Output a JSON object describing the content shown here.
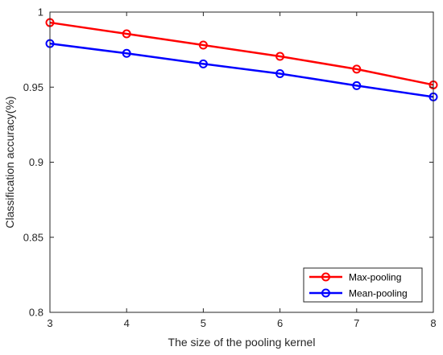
{
  "chart_data": {
    "type": "line",
    "title": "",
    "xlabel": "The size of the pooling kernel",
    "ylabel": "Classification accuracy(%)",
    "x": [
      3,
      4,
      5,
      6,
      7,
      8
    ],
    "xlim": [
      3,
      8
    ],
    "ylim": [
      0.8,
      1.0
    ],
    "xticks": [
      "3",
      "4",
      "5",
      "6",
      "7",
      "8"
    ],
    "yticks": [
      "0.8",
      "0.85",
      "0.9",
      "0.95",
      "1"
    ],
    "grid": false,
    "legend_position": "bottom-right",
    "series": [
      {
        "name": "Max-pooling",
        "color": "#ff0000",
        "marker": "circle",
        "values": [
          0.993,
          0.9855,
          0.978,
          0.9705,
          0.962,
          0.9515
        ]
      },
      {
        "name": "Mean-pooling",
        "color": "#0000ff",
        "marker": "circle",
        "values": [
          0.979,
          0.9725,
          0.9655,
          0.959,
          0.951,
          0.9435
        ]
      }
    ]
  }
}
